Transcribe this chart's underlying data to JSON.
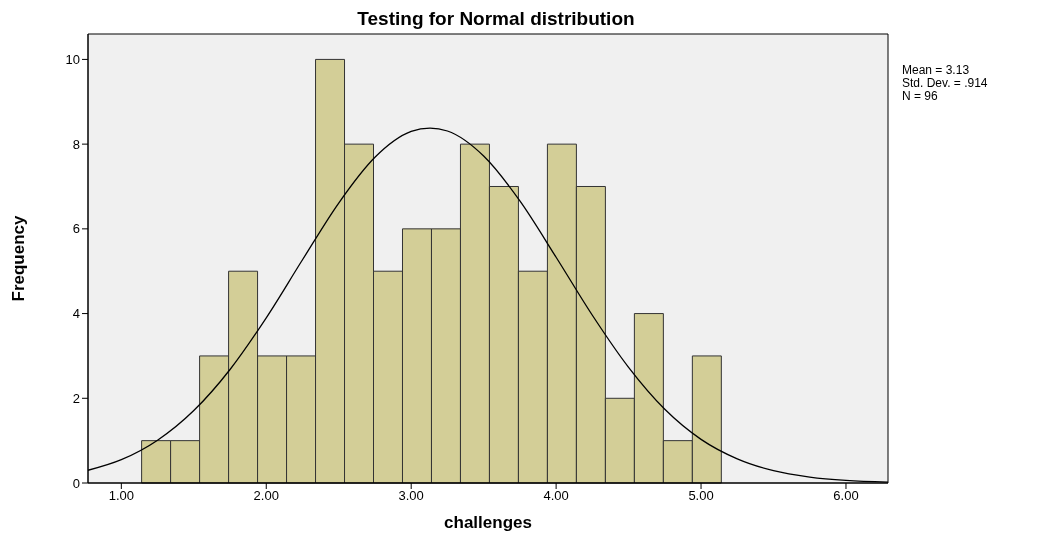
{
  "chart_data": {
    "type": "histogram",
    "title": "Testing for Normal distribution",
    "xlabel": "challenges",
    "ylabel": "Frequency",
    "bins": [
      1.14,
      1.34,
      1.54,
      1.74,
      1.94,
      2.14,
      2.34,
      2.54,
      2.74,
      2.94,
      3.14,
      3.34,
      3.54,
      3.74,
      3.94,
      4.14,
      4.34,
      4.54,
      4.74,
      4.94,
      5.14
    ],
    "values": [
      1,
      1,
      3,
      5,
      3,
      3,
      10,
      8,
      5,
      6,
      6,
      8,
      7,
      5,
      8,
      7,
      2,
      4,
      1,
      3
    ],
    "color": "#d3ce97",
    "series": [
      {
        "type": "line",
        "color": "#000000",
        "x": [
          0.77,
          1.0,
          1.25,
          1.5,
          1.75,
          2.0,
          2.25,
          2.5,
          2.75,
          3.0,
          3.13,
          3.25,
          3.5,
          3.75,
          4.0,
          4.25,
          4.5,
          4.75,
          5.0,
          5.25,
          5.5,
          5.75,
          6.0,
          6.29
        ],
        "values": [
          0.3,
          0.55,
          1.01,
          1.71,
          2.68,
          3.9,
          5.27,
          6.61,
          7.69,
          8.3,
          8.38,
          8.31,
          7.72,
          6.66,
          5.33,
          3.96,
          2.73,
          1.74,
          1.03,
          0.57,
          0.29,
          0.14,
          0.06,
          0.02
        ]
      }
    ],
    "xlim": [
      0.77,
      6.29
    ],
    "ylim": [
      0,
      10.6
    ],
    "xticks": [
      {
        "value": 1,
        "label": "1.00"
      },
      {
        "value": 2,
        "label": "2.00"
      },
      {
        "value": 3,
        "label": "3.00"
      },
      {
        "value": 4,
        "label": "4.00"
      },
      {
        "value": 5,
        "label": "5.00"
      },
      {
        "value": 6,
        "label": "6.00"
      }
    ],
    "yticks": [
      0,
      2,
      4,
      6,
      8,
      10
    ],
    "annotations": [
      "Mean = 3.13",
      "Std. Dev. = .914",
      "N = 96"
    ],
    "legend": false,
    "marker": "none"
  }
}
